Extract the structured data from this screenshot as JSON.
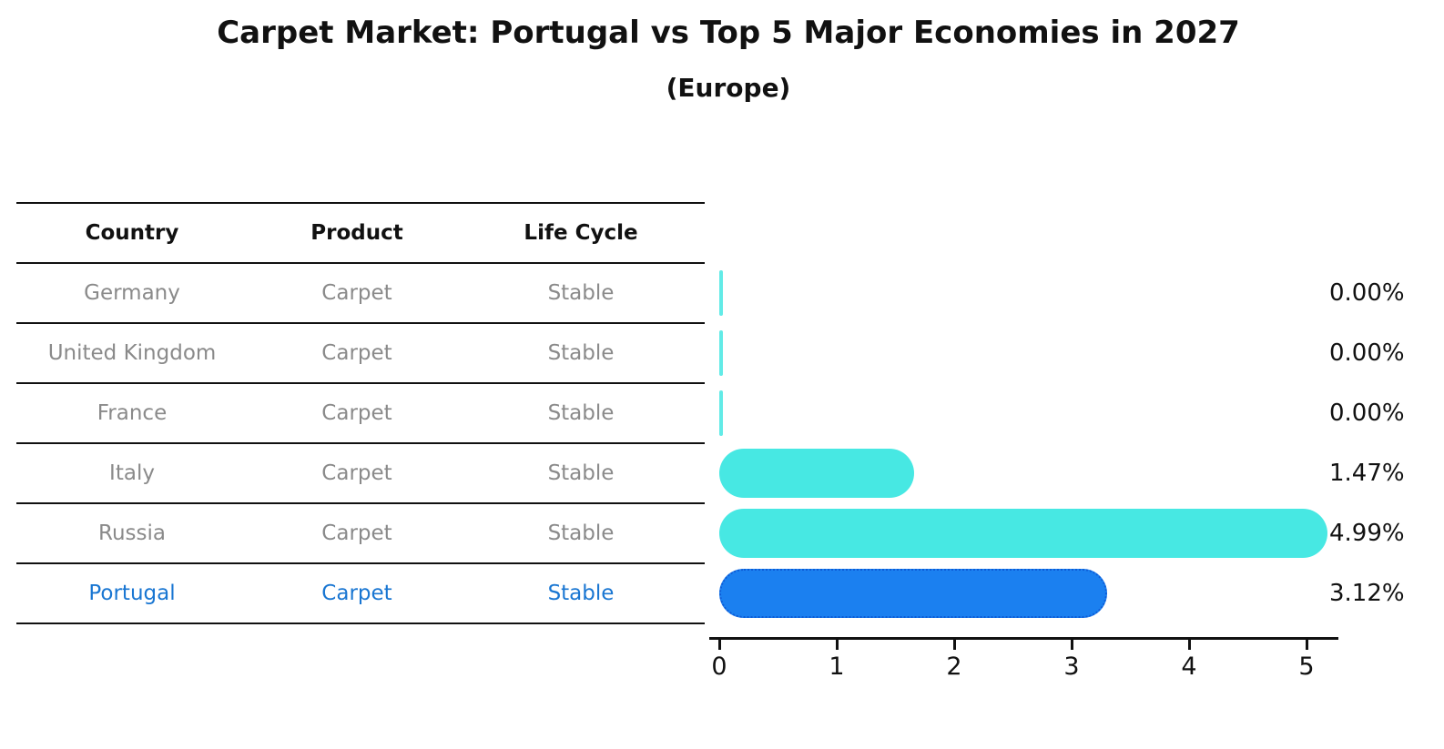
{
  "title": "Carpet Market: Portugal vs Top 5 Major Economies in 2027",
  "subtitle": "(Europe)",
  "table": {
    "headers": [
      "Country",
      "Product",
      "Life Cycle"
    ],
    "rows": [
      {
        "country": "Germany",
        "product": "Carpet",
        "life_cycle": "Stable"
      },
      {
        "country": "United Kingdom",
        "product": "Carpet",
        "life_cycle": "Stable"
      },
      {
        "country": "France",
        "product": "Carpet",
        "life_cycle": "Stable"
      },
      {
        "country": "Italy",
        "product": "Carpet",
        "life_cycle": "Stable"
      },
      {
        "country": "Russia",
        "product": "Carpet",
        "life_cycle": "Stable"
      },
      {
        "country": "Portugal",
        "product": "Carpet",
        "life_cycle": "Stable"
      }
    ]
  },
  "chart_data": {
    "type": "bar",
    "orientation": "horizontal",
    "title": "Carpet Market: Portugal vs Top 5 Major Economies in 2027",
    "subtitle": "(Europe)",
    "categories": [
      "Germany",
      "United Kingdom",
      "France",
      "Italy",
      "Russia",
      "Portugal"
    ],
    "values": [
      0.0,
      0.0,
      0.0,
      1.47,
      4.99,
      3.12
    ],
    "value_labels": [
      "0.00%",
      "0.00%",
      "0.00%",
      "1.47%",
      "4.99%",
      "3.12%"
    ],
    "x_ticks": [
      "0",
      "1",
      "2",
      "3",
      "4",
      "5"
    ],
    "xlim": [
      0,
      5.25
    ],
    "grid": false,
    "legend": "none",
    "highlight_index": 5,
    "colors": {
      "bar_default": "#47E8E3",
      "bar_highlight": "#1B80F0",
      "bar_highlight_edge": "#0D5BD6",
      "highlight_text": "#1976D2",
      "row_text": "#8A8A8A",
      "header_text": "#111111",
      "axis": "#111111"
    }
  }
}
